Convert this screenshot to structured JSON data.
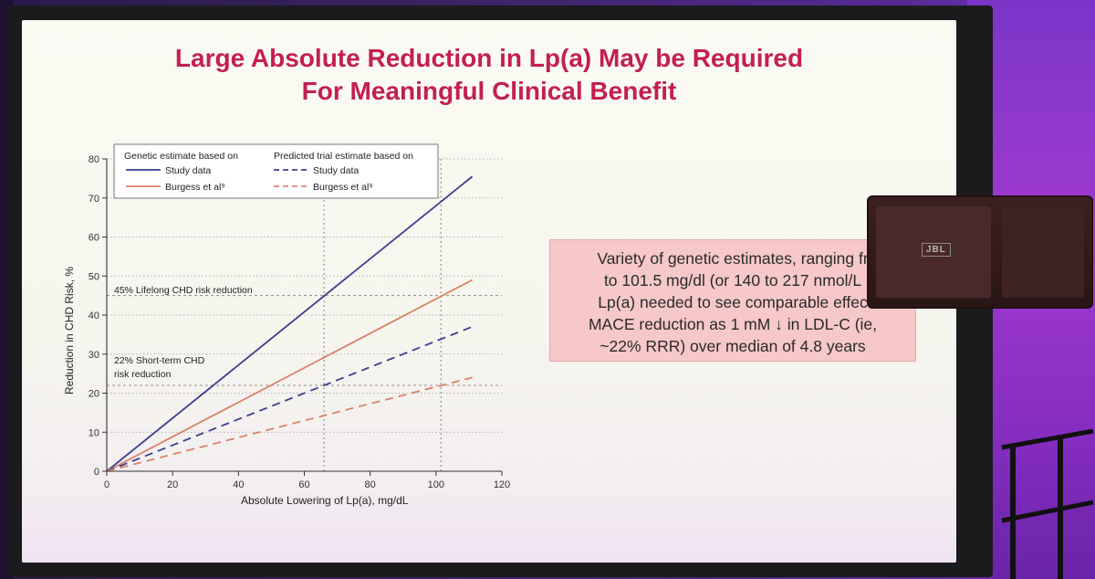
{
  "slide": {
    "title_line1": "Large Absolute Reduction in Lp(a) May be Required",
    "title_line2": "For Meaningful Clinical Benefit",
    "callout_lines": [
      "Variety of genetic estimates, ranging fr",
      "to 101.5 mg/dl (or 140 to 217 nmol/L",
      "Lp(a) needed to see comparable effec",
      "MACE reduction as 1 mM ↓ in LDL-C (ie,",
      "~22% RRR) over median of 4.8 years"
    ]
  },
  "speaker": {
    "logo": "JBL"
  },
  "chart_data": {
    "type": "line",
    "title": "",
    "xlabel": "Absolute Lowering of Lp(a), mg/dL",
    "ylabel": "Reduction in CHD Risk, %",
    "xlim": [
      0,
      120
    ],
    "ylim": [
      0,
      80
    ],
    "x_ticks": [
      0,
      20,
      40,
      60,
      80,
      100,
      120
    ],
    "y_ticks": [
      0,
      10,
      20,
      30,
      40,
      50,
      60,
      70,
      80
    ],
    "grid": "horizontal dotted lines at y ticks",
    "legend": {
      "placement": "top-left",
      "group_headers": [
        "Genetic estimate based on",
        "Predicted trial estimate based on"
      ]
    },
    "series": [
      {
        "name": "Study data",
        "group": "Genetic estimate based on",
        "style": "solid",
        "color": "#3c3f8f",
        "x": [
          0,
          111
        ],
        "y": [
          0,
          75.5
        ]
      },
      {
        "name": "Burgess et al⁹",
        "group": "Genetic estimate based on",
        "style": "solid",
        "color": "#d9826c",
        "x": [
          0,
          111
        ],
        "y": [
          0,
          49
        ]
      },
      {
        "name": "Study data",
        "group": "Predicted trial estimate based on",
        "style": "dashed",
        "color": "#3c3f8f",
        "x": [
          0,
          111
        ],
        "y": [
          0,
          37
        ]
      },
      {
        "name": "Burgess et al⁹",
        "group": "Predicted trial estimate based on",
        "style": "dashed",
        "color": "#d9826c",
        "x": [
          0,
          111
        ],
        "y": [
          0,
          24
        ]
      }
    ],
    "reference_lines": [
      {
        "axis": "y",
        "value": 45,
        "label": "45% Lifelong CHD risk reduction"
      },
      {
        "axis": "y",
        "value": 22,
        "label_lines": [
          "22% Short-term CHD",
          "risk reduction"
        ]
      },
      {
        "axis": "x",
        "value": 66
      },
      {
        "axis": "x",
        "value": 101.5
      }
    ]
  }
}
